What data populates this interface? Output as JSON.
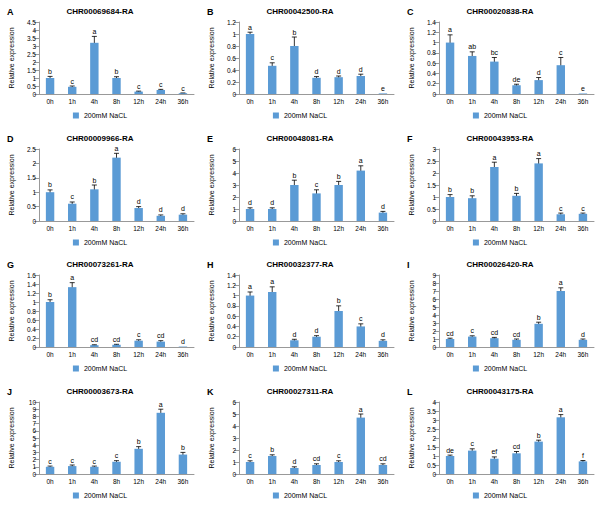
{
  "chart_data": [
    {
      "type": "bar",
      "panel": "A",
      "title": "CHR00069684-RA",
      "y_label": "Relative expression",
      "categories": [
        "0h",
        "1h",
        "4h",
        "8h",
        "12h",
        "24h",
        "36h"
      ],
      "series": [
        {
          "name": "200mM NaCL",
          "color": "#5b9bd5",
          "values": [
            1.0,
            0.45,
            3.2,
            1.0,
            0.15,
            0.25,
            0.05
          ],
          "errors": [
            0.1,
            0.05,
            0.4,
            0.08,
            0.03,
            0.04,
            0.01
          ],
          "letters": [
            "b",
            "c",
            "a",
            "b",
            "c",
            "c",
            "c"
          ]
        }
      ],
      "ylim": [
        0,
        4.5
      ],
      "yticks": [
        0,
        0.5,
        1,
        1.5,
        2,
        2.5,
        3,
        3.5,
        4,
        4.5
      ],
      "grid": false,
      "legend": "bottom"
    },
    {
      "type": "bar",
      "panel": "B",
      "title": "CHR00042500-RA",
      "y_label": "Relative expression",
      "categories": [
        "0h",
        "1h",
        "4h",
        "8h",
        "12h",
        "24h",
        "36h"
      ],
      "series": [
        {
          "name": "200mM NaCL",
          "color": "#5b9bd5",
          "values": [
            1.0,
            0.47,
            0.8,
            0.27,
            0.28,
            0.3,
            0.01
          ],
          "errors": [
            0.03,
            0.05,
            0.15,
            0.02,
            0.02,
            0.03,
            0.0
          ],
          "letters": [
            "a",
            "c",
            "b",
            "d",
            "d",
            "d",
            "e"
          ]
        }
      ],
      "ylim": [
        0,
        1.2
      ],
      "yticks": [
        0,
        0.2,
        0.4,
        0.6,
        0.8,
        1,
        1.2
      ],
      "grid": false,
      "legend": "bottom"
    },
    {
      "type": "bar",
      "panel": "C",
      "title": "CHR00020838-RA",
      "y_label": "Relative expression",
      "categories": [
        "0h",
        "1h",
        "4h",
        "8h",
        "12h",
        "24h",
        "36h"
      ],
      "series": [
        {
          "name": "200mM NaCL",
          "color": "#5b9bd5",
          "values": [
            1.0,
            0.74,
            0.63,
            0.17,
            0.27,
            0.56,
            0.01
          ],
          "errors": [
            0.15,
            0.08,
            0.08,
            0.02,
            0.05,
            0.15,
            0.0
          ],
          "letters": [
            "a",
            "ab",
            "bc",
            "de",
            "d",
            "c",
            "e"
          ]
        }
      ],
      "ylim": [
        0,
        1.4
      ],
      "yticks": [
        0,
        0.2,
        0.4,
        0.6,
        0.8,
        1,
        1.2,
        1.4
      ],
      "grid": false,
      "legend": "bottom"
    },
    {
      "type": "bar",
      "panel": "D",
      "title": "CHR00009966-RA",
      "y_label": "Relative expression",
      "categories": [
        "0h",
        "1h",
        "4h",
        "8h",
        "12h",
        "24h",
        "36h"
      ],
      "series": [
        {
          "name": "200mM NaCL",
          "color": "#5b9bd5",
          "values": [
            1.0,
            0.6,
            1.1,
            2.2,
            0.45,
            0.18,
            0.22
          ],
          "errors": [
            0.08,
            0.06,
            0.15,
            0.15,
            0.05,
            0.03,
            0.03
          ],
          "letters": [
            "b",
            "c",
            "b",
            "a",
            "d",
            "d",
            "d"
          ]
        }
      ],
      "ylim": [
        0,
        2.5
      ],
      "yticks": [
        0,
        0.5,
        1,
        1.5,
        2,
        2.5
      ],
      "grid": false,
      "legend": "bottom"
    },
    {
      "type": "bar",
      "panel": "E",
      "title": "CHR00048081-RA",
      "y_label": "Relative expression",
      "categories": [
        "0h",
        "1h",
        "4h",
        "8h",
        "12h",
        "24h",
        "36h"
      ],
      "series": [
        {
          "name": "200mM NaCL",
          "color": "#5b9bd5",
          "values": [
            1.0,
            1.0,
            3.0,
            2.3,
            3.0,
            4.2,
            0.7
          ],
          "errors": [
            0.1,
            0.1,
            0.4,
            0.3,
            0.3,
            0.4,
            0.1
          ],
          "letters": [
            "d",
            "d",
            "b",
            "c",
            "b",
            "a",
            "d"
          ]
        }
      ],
      "ylim": [
        0,
        6
      ],
      "yticks": [
        0,
        1,
        2,
        3,
        4,
        5,
        6
      ],
      "grid": false,
      "legend": "bottom"
    },
    {
      "type": "bar",
      "panel": "F",
      "title": "CHR00043953-RA",
      "y_label": "Relative expression",
      "categories": [
        "0h",
        "1h",
        "4h",
        "8h",
        "12h",
        "24h",
        "36h"
      ],
      "series": [
        {
          "name": "200mM NaCL",
          "color": "#5b9bd5",
          "values": [
            1.0,
            0.95,
            2.25,
            1.05,
            2.4,
            0.28,
            0.3
          ],
          "errors": [
            0.1,
            0.1,
            0.2,
            0.1,
            0.2,
            0.05,
            0.03
          ],
          "letters": [
            "b",
            "b",
            "a",
            "b",
            "a",
            "c",
            "c"
          ]
        }
      ],
      "ylim": [
        0,
        3
      ],
      "yticks": [
        0,
        0.5,
        1,
        1.5,
        2,
        2.5,
        3
      ],
      "grid": false,
      "legend": "bottom"
    },
    {
      "type": "bar",
      "panel": "G",
      "title": "CHR00073261-RA",
      "y_label": "Relative expression",
      "categories": [
        "0h",
        "1h",
        "4h",
        "8h",
        "12h",
        "24h",
        "36h"
      ],
      "series": [
        {
          "name": "200mM NaCL",
          "color": "#5b9bd5",
          "values": [
            1.0,
            1.33,
            0.04,
            0.05,
            0.14,
            0.12,
            0.01
          ],
          "errors": [
            0.05,
            0.1,
            0.01,
            0.01,
            0.02,
            0.02,
            0.0
          ],
          "letters": [
            "b",
            "a",
            "cd",
            "cd",
            "c",
            "cd",
            "d"
          ]
        }
      ],
      "ylim": [
        0,
        1.6
      ],
      "yticks": [
        0,
        0.2,
        0.4,
        0.6,
        0.8,
        1,
        1.2,
        1.4,
        1.6
      ],
      "grid": false,
      "legend": "bottom"
    },
    {
      "type": "bar",
      "panel": "H",
      "title": "CHR00032377-RA",
      "y_label": "Relative expression",
      "categories": [
        "0h",
        "1h",
        "4h",
        "8h",
        "12h",
        "24h",
        "36h"
      ],
      "series": [
        {
          "name": "200mM NaCL",
          "color": "#5b9bd5",
          "values": [
            1.0,
            1.07,
            0.13,
            0.2,
            0.7,
            0.4,
            0.12
          ],
          "errors": [
            0.07,
            0.1,
            0.02,
            0.02,
            0.1,
            0.05,
            0.02
          ],
          "letters": [
            "a",
            "a",
            "d",
            "d",
            "b",
            "c",
            "d"
          ]
        }
      ],
      "ylim": [
        0,
        1.4
      ],
      "yticks": [
        0,
        0.2,
        0.4,
        0.6,
        0.8,
        1,
        1.2,
        1.4
      ],
      "grid": false,
      "legend": "bottom"
    },
    {
      "type": "bar",
      "panel": "I",
      "title": "CHR00026420-RA",
      "y_label": "Relative expression",
      "categories": [
        "0h",
        "1h",
        "4h",
        "8h",
        "12h",
        "24h",
        "36h"
      ],
      "series": [
        {
          "name": "200mM NaCL",
          "color": "#5b9bd5",
          "values": [
            1.0,
            1.3,
            1.1,
            0.9,
            2.9,
            7.0,
            0.9
          ],
          "errors": [
            0.1,
            0.1,
            0.1,
            0.1,
            0.2,
            0.4,
            0.1
          ],
          "letters": [
            "cd",
            "c",
            "cd",
            "cd",
            "b",
            "a",
            "d"
          ]
        }
      ],
      "ylim": [
        0,
        9
      ],
      "yticks": [
        0,
        1,
        2,
        3,
        4,
        5,
        6,
        7,
        8,
        9
      ],
      "grid": false,
      "legend": "bottom"
    },
    {
      "type": "bar",
      "panel": "J",
      "title": "CHR00003673-RA",
      "y_label": "Relative expression",
      "categories": [
        "0h",
        "1h",
        "4h",
        "8h",
        "12h",
        "24h",
        "36h"
      ],
      "series": [
        {
          "name": "200mM NaCL",
          "color": "#5b9bd5",
          "values": [
            1.0,
            1.1,
            1.0,
            1.7,
            3.5,
            8.5,
            2.7
          ],
          "errors": [
            0.1,
            0.15,
            0.1,
            0.15,
            0.3,
            0.5,
            0.3
          ],
          "letters": [
            "c",
            "c",
            "c",
            "c",
            "b",
            "a",
            "b"
          ]
        }
      ],
      "ylim": [
        0,
        10
      ],
      "yticks": [
        0,
        1,
        2,
        3,
        4,
        5,
        6,
        7,
        8,
        9,
        10
      ],
      "grid": false,
      "legend": "bottom"
    },
    {
      "type": "bar",
      "panel": "K",
      "title": "CHR00027311-RA",
      "y_label": "Relative expression",
      "categories": [
        "0h",
        "1h",
        "4h",
        "8h",
        "12h",
        "24h",
        "36h"
      ],
      "series": [
        {
          "name": "200mM NaCL",
          "color": "#5b9bd5",
          "values": [
            1.0,
            1.5,
            0.5,
            0.75,
            1.0,
            4.7,
            0.75
          ],
          "errors": [
            0.1,
            0.1,
            0.1,
            0.1,
            0.1,
            0.3,
            0.1
          ],
          "letters": [
            "c",
            "b",
            "d",
            "cd",
            "c",
            "a",
            "cd"
          ]
        }
      ],
      "ylim": [
        0,
        6
      ],
      "yticks": [
        0,
        1,
        2,
        3,
        4,
        5,
        6
      ],
      "grid": false,
      "legend": "bottom"
    },
    {
      "type": "bar",
      "panel": "L",
      "title": "CHR00043175-RA",
      "y_label": "Relative expression",
      "categories": [
        "0h",
        "1h",
        "4h",
        "8h",
        "12h",
        "24h",
        "36h"
      ],
      "series": [
        {
          "name": "200mM NaCL",
          "color": "#5b9bd5",
          "values": [
            1.0,
            1.3,
            0.85,
            1.15,
            1.8,
            3.15,
            0.7
          ],
          "errors": [
            0.05,
            0.1,
            0.1,
            0.1,
            0.08,
            0.15,
            0.05
          ],
          "letters": [
            "de",
            "c",
            "ef",
            "cd",
            "b",
            "a",
            "f"
          ]
        }
      ],
      "ylim": [
        0,
        4
      ],
      "yticks": [
        0,
        0.5,
        1,
        1.5,
        2,
        2.5,
        3,
        3.5,
        4
      ],
      "grid": false,
      "legend": "bottom"
    }
  ]
}
